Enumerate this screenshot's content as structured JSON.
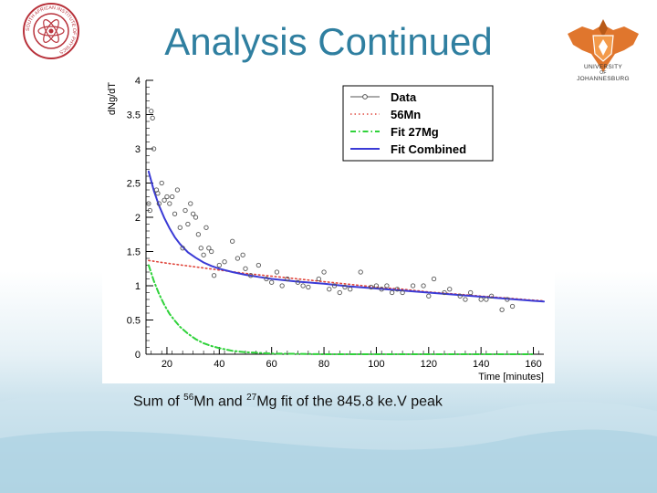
{
  "slide": {
    "title": "Analysis Continued",
    "caption": {
      "prefix": "Sum of ",
      "iso1_mass": "56",
      "iso1_symbol": "Mn and ",
      "iso2_mass": "27",
      "iso2_symbol": "Mg fit of the 845.8 ke.V peak"
    },
    "logo_left": {
      "text": "SOUTH AFRICAN INSTITUTE OF PHYSICS",
      "icon": "saip-logo-icon"
    },
    "logo_right": {
      "line1": "UNIVERSITY",
      "line2": "OF",
      "line3": "JOHANNESBURG",
      "icon": "uj-logo-icon"
    }
  },
  "colors": {
    "title": "#2f7fa0",
    "data": "#555555",
    "mn56": "#e0463c",
    "mg27": "#2fd23a",
    "combined": "#3b3bd6"
  },
  "chart_data": {
    "type": "scatter",
    "title": "",
    "xlabel": "Time [minutes]",
    "ylabel": "dNg/dT",
    "xlim": [
      12,
      164
    ],
    "ylim": [
      0,
      4
    ],
    "x_ticks": [
      20,
      40,
      60,
      80,
      100,
      120,
      140,
      160
    ],
    "y_ticks": [
      0,
      0.5,
      1,
      1.5,
      2,
      2.5,
      3,
      3.5,
      4
    ],
    "grid": false,
    "legend_position": "top-right",
    "legend": [
      "Data",
      "56Mn",
      "Fit 27Mg",
      "Fit Combined"
    ],
    "series": [
      {
        "name": "Data",
        "kind": "points",
        "x": [
          13,
          13.5,
          14,
          14.5,
          15,
          16,
          16.5,
          17,
          18,
          19,
          20,
          21,
          22,
          23,
          24,
          25,
          26,
          27,
          28,
          29,
          30,
          31,
          32,
          33,
          34,
          35,
          36,
          37,
          38,
          40,
          42,
          45,
          47,
          49,
          50,
          52,
          55,
          58,
          60,
          62,
          64,
          66,
          70,
          72,
          74,
          78,
          80,
          82,
          84,
          86,
          88,
          90,
          94,
          98,
          100,
          102,
          104,
          106,
          108,
          110,
          114,
          118,
          120,
          122,
          126,
          128,
          132,
          134,
          136,
          140,
          142,
          144,
          148,
          150,
          152
        ],
        "y": [
          2.2,
          2.1,
          3.55,
          3.45,
          3.0,
          2.4,
          2.35,
          2.2,
          2.5,
          2.25,
          2.3,
          2.2,
          2.3,
          2.05,
          2.4,
          1.85,
          1.55,
          2.1,
          1.9,
          2.2,
          2.05,
          2.0,
          1.75,
          1.55,
          1.45,
          1.85,
          1.55,
          1.5,
          1.15,
          1.3,
          1.35,
          1.65,
          1.4,
          1.45,
          1.25,
          1.15,
          1.3,
          1.1,
          1.05,
          1.2,
          1.0,
          1.1,
          1.05,
          1.0,
          0.98,
          1.1,
          1.2,
          0.95,
          1.0,
          0.9,
          0.98,
          0.95,
          1.2,
          0.98,
          1.0,
          0.95,
          1.0,
          0.9,
          0.95,
          0.9,
          1.0,
          1.0,
          0.85,
          1.1,
          0.9,
          0.95,
          0.85,
          0.8,
          0.9,
          0.8,
          0.8,
          0.85,
          0.65,
          0.8,
          0.7
        ]
      },
      {
        "name": "56Mn",
        "kind": "dotted-line",
        "x": [
          13,
          20,
          30,
          40,
          50,
          60,
          70,
          80,
          90,
          100,
          110,
          120,
          130,
          140,
          150,
          160,
          165
        ],
        "y": [
          1.37,
          1.33,
          1.28,
          1.23,
          1.18,
          1.14,
          1.1,
          1.06,
          1.02,
          0.98,
          0.95,
          0.91,
          0.88,
          0.85,
          0.82,
          0.79,
          0.78
        ]
      },
      {
        "name": "Fit 27Mg",
        "kind": "dash-dot-line",
        "x": [
          13,
          15,
          17,
          19,
          21,
          23,
          25,
          28,
          31,
          34,
          37,
          40,
          45,
          50,
          55,
          60,
          70,
          80,
          90,
          100,
          120,
          140,
          160
        ],
        "y": [
          1.3,
          1.07,
          0.88,
          0.72,
          0.59,
          0.49,
          0.4,
          0.3,
          0.22,
          0.16,
          0.12,
          0.09,
          0.05,
          0.03,
          0.02,
          0.01,
          0.005,
          0.0,
          0.0,
          0.0,
          0.0,
          0.0,
          0.0
        ]
      },
      {
        "name": "Fit Combined",
        "kind": "solid-line",
        "x": [
          13,
          15,
          17,
          19,
          21,
          23,
          25,
          28,
          31,
          34,
          37,
          40,
          45,
          50,
          55,
          60,
          70,
          80,
          90,
          100,
          110,
          120,
          130,
          140,
          150,
          160,
          165
        ],
        "y": [
          2.67,
          2.39,
          2.17,
          1.99,
          1.84,
          1.71,
          1.61,
          1.49,
          1.41,
          1.34,
          1.29,
          1.25,
          1.2,
          1.16,
          1.13,
          1.1,
          1.06,
          1.03,
          0.99,
          0.96,
          0.93,
          0.9,
          0.87,
          0.84,
          0.81,
          0.78,
          0.77
        ]
      }
    ]
  }
}
